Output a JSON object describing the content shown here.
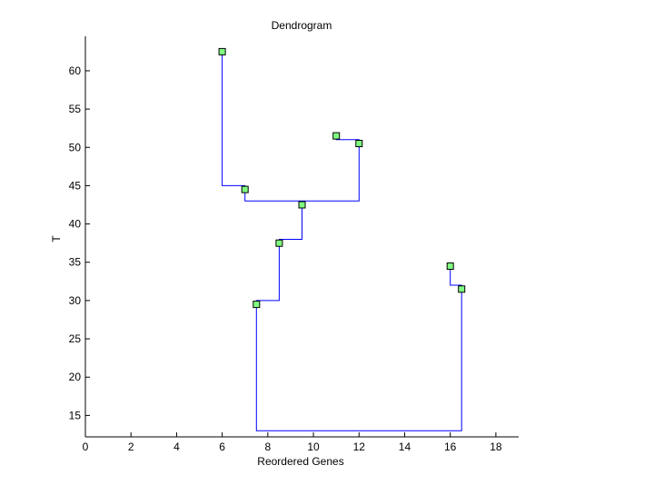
{
  "chart_data": {
    "type": "dendrogram",
    "title": "Dendrogram",
    "xlabel": "Reordered Genes",
    "ylabel": "T",
    "xlim": [
      0,
      19
    ],
    "ylim": [
      12.2,
      64.5
    ],
    "xticks": [
      0,
      2,
      4,
      6,
      8,
      10,
      12,
      14,
      16,
      18
    ],
    "yticks": [
      15,
      20,
      25,
      30,
      35,
      40,
      45,
      50,
      55,
      60
    ],
    "grid": false,
    "line_color": "#0000ff",
    "marker_fill": "#80ff80",
    "marker_edge": "#000000",
    "nodes": [
      {
        "x": 6.0,
        "y": 62.5
      },
      {
        "x": 7.0,
        "y": 44.5
      },
      {
        "x": 9.5,
        "y": 42.5
      },
      {
        "x": 11.0,
        "y": 51.5
      },
      {
        "x": 12.0,
        "y": 50.5
      },
      {
        "x": 8.5,
        "y": 37.5
      },
      {
        "x": 7.5,
        "y": 29.5
      },
      {
        "x": 16.0,
        "y": 34.5
      },
      {
        "x": 16.5,
        "y": 31.5
      }
    ],
    "links": [
      [
        [
          6.0,
          62.5
        ],
        [
          6.0,
          45.0
        ],
        [
          7.0,
          45.0
        ],
        [
          7.0,
          44.5
        ]
      ],
      [
        [
          11.0,
          51.5
        ],
        [
          11.0,
          51.0
        ],
        [
          12.0,
          51.0
        ],
        [
          12.0,
          50.5
        ]
      ],
      [
        [
          7.0,
          44.5
        ],
        [
          7.0,
          43.0
        ],
        [
          12.0,
          43.0
        ],
        [
          12.0,
          50.5
        ]
      ],
      [
        [
          9.5,
          43.0
        ],
        [
          9.5,
          38.0
        ],
        [
          8.5,
          38.0
        ],
        [
          8.5,
          37.5
        ]
      ],
      [
        [
          8.5,
          37.5
        ],
        [
          8.5,
          30.0
        ],
        [
          7.5,
          30.0
        ],
        [
          7.5,
          29.5
        ]
      ],
      [
        [
          16.0,
          34.5
        ],
        [
          16.0,
          32.0
        ],
        [
          16.5,
          32.0
        ],
        [
          16.5,
          31.5
        ]
      ],
      [
        [
          7.5,
          29.5
        ],
        [
          7.5,
          13.0
        ],
        [
          16.5,
          13.0
        ],
        [
          16.5,
          31.5
        ]
      ]
    ]
  }
}
